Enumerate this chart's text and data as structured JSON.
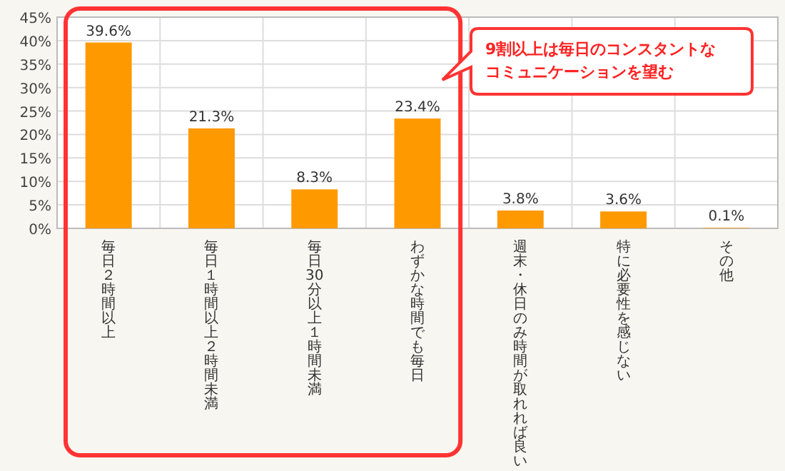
{
  "chart_data": {
    "type": "bar",
    "categories": [
      "毎日２時間以上",
      "毎日１時間以上２時間未満",
      "毎日30分以上１時間未満",
      "わずかな時間でも毎日",
      "週末・休日のみ時間が取れれば良い",
      "特に必要性を感じない",
      "その他"
    ],
    "values": [
      39.6,
      21.3,
      8.3,
      23.4,
      3.8,
      3.6,
      0.1
    ],
    "value_labels": [
      "39.6%",
      "21.3%",
      "8.3%",
      "23.4%",
      "3.8%",
      "3.6%",
      "0.1%"
    ],
    "color": "#ff9900",
    "ylim": [
      0,
      45
    ],
    "yticks": [
      {
        "value": 0,
        "label": "0%"
      },
      {
        "value": 5,
        "label": "5%"
      },
      {
        "value": 10,
        "label": "10%"
      },
      {
        "value": 15,
        "label": "15%"
      },
      {
        "value": 20,
        "label": "20%"
      },
      {
        "value": 25,
        "label": "25%"
      },
      {
        "value": 30,
        "label": "30%"
      },
      {
        "value": 35,
        "label": "35%"
      },
      {
        "value": 40,
        "label": "40%"
      },
      {
        "value": 45,
        "label": "45%"
      }
    ],
    "grid": true,
    "annotations": [
      "9割以上は毎日のコンスタントなコミュニケーションを望む"
    ]
  }
}
